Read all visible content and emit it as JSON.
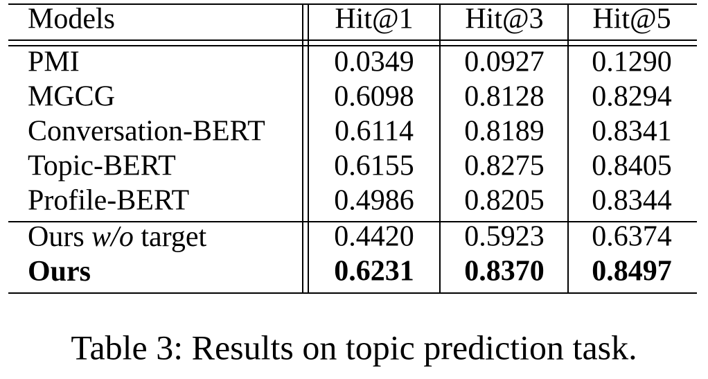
{
  "table": {
    "header": [
      "Models",
      "Hit@1",
      "Hit@3",
      "Hit@5"
    ],
    "rows": [
      [
        "PMI",
        "0.0349",
        "0.0927",
        "0.1290"
      ],
      [
        "MGCG",
        "0.6098",
        "0.8128",
        "0.8294"
      ],
      [
        "Conversation-BERT",
        "0.6114",
        "0.8189",
        "0.8341"
      ],
      [
        "Topic-BERT",
        "0.6155",
        "0.8275",
        "0.8405"
      ],
      [
        "Profile-BERT",
        "0.4986",
        "0.8205",
        "0.8344"
      ]
    ],
    "ablation_rows": [
      [
        [
          "Ours",
          "w/o",
          "target"
        ],
        "0.4420",
        "0.5923",
        "0.6374"
      ],
      [
        [
          "Ours"
        ],
        "0.6231",
        "0.8370",
        "0.8497"
      ]
    ]
  },
  "caption": "Table 3: Results on topic prediction task."
}
